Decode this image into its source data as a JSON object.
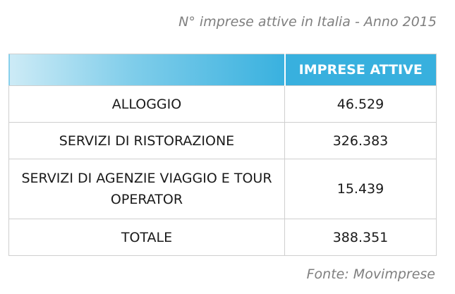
{
  "title": "N° imprese attive in Italia - Anno 2015",
  "table": {
    "header": [
      "",
      "IMPRESE ATTIVE"
    ],
    "rows": [
      {
        "label": "ALLOGGIO",
        "value": "46.529"
      },
      {
        "label": "SERVIZI DI RISTORAZIONE",
        "value": "326.383"
      },
      {
        "label": "SERVIZI DI AGENZIE VIAGGIO E TOUR OPERATOR",
        "value": "15.439"
      },
      {
        "label": "TOTALE",
        "value": "388.351"
      }
    ]
  },
  "source": "Fonte: Movimprese",
  "colors": {
    "header_accent": "#38b0de",
    "caption_text": "#7f7f7f",
    "grid_border": "#cfcfcf"
  }
}
